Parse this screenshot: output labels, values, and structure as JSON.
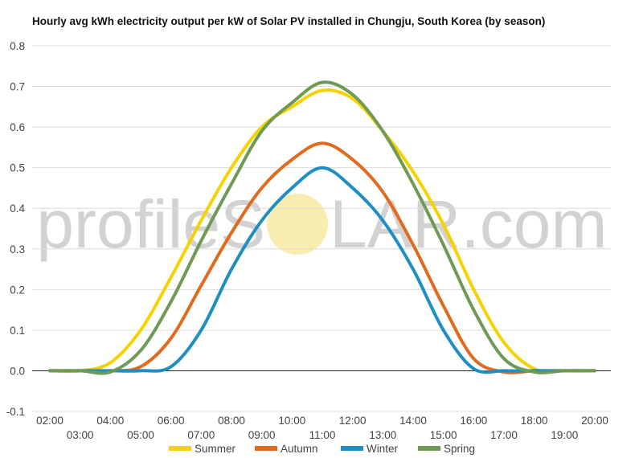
{
  "chart_data": {
    "type": "line",
    "title": "Hourly avg kWh electricity output per kW of Solar PV installed in Chungju, South Korea (by season)",
    "xlabel": "",
    "ylabel": "",
    "x": [
      "02:00",
      "03:00",
      "04:00",
      "05:00",
      "06:00",
      "07:00",
      "08:00",
      "09:00",
      "10:00",
      "11:00",
      "12:00",
      "13:00",
      "14:00",
      "15:00",
      "16:00",
      "17:00",
      "18:00",
      "19:00",
      "20:00"
    ],
    "x_tick_labels_top": [
      "02:00",
      "04:00",
      "06:00",
      "08:00",
      "10:00",
      "12:00",
      "14:00",
      "16:00",
      "18:00",
      "20:00"
    ],
    "x_tick_labels_bottom": [
      "03:00",
      "05:00",
      "07:00",
      "09:00",
      "11:00",
      "13:00",
      "15:00",
      "17:00",
      "19:00"
    ],
    "ylim": [
      -0.1,
      0.8
    ],
    "y_ticks": [
      "-0.1",
      "0.0",
      "0.1",
      "0.2",
      "0.3",
      "0.4",
      "0.5",
      "0.6",
      "0.7",
      "0.8"
    ],
    "grid": true,
    "legend_position": "bottom",
    "series": [
      {
        "name": "Summer",
        "color": "#f5d200",
        "values": [
          0,
          0,
          0.02,
          0.1,
          0.23,
          0.37,
          0.5,
          0.6,
          0.65,
          0.69,
          0.67,
          0.59,
          0.49,
          0.36,
          0.2,
          0.07,
          0.005,
          0,
          0
        ]
      },
      {
        "name": "Autumn",
        "color": "#e06b1f",
        "values": [
          0,
          0,
          0,
          0.01,
          0.08,
          0.21,
          0.34,
          0.45,
          0.52,
          0.56,
          0.52,
          0.44,
          0.31,
          0.16,
          0.03,
          -0.003,
          0,
          0,
          0
        ]
      },
      {
        "name": "Winter",
        "color": "#1f8fc3",
        "values": [
          0,
          0,
          0,
          0,
          0.01,
          0.1,
          0.25,
          0.37,
          0.45,
          0.5,
          0.45,
          0.37,
          0.25,
          0.1,
          0.005,
          0,
          0,
          0,
          0
        ]
      },
      {
        "name": "Spring",
        "color": "#6f9a55",
        "values": [
          0,
          0,
          -0.003,
          0.05,
          0.17,
          0.32,
          0.46,
          0.59,
          0.66,
          0.71,
          0.68,
          0.59,
          0.46,
          0.31,
          0.15,
          0.03,
          -0.003,
          0,
          0
        ]
      }
    ]
  },
  "watermark": {
    "text_left": "profileS",
    "text_right": "LAR.com",
    "sun_color": "#f7e9a0",
    "text_color": "#d2d2d2"
  }
}
